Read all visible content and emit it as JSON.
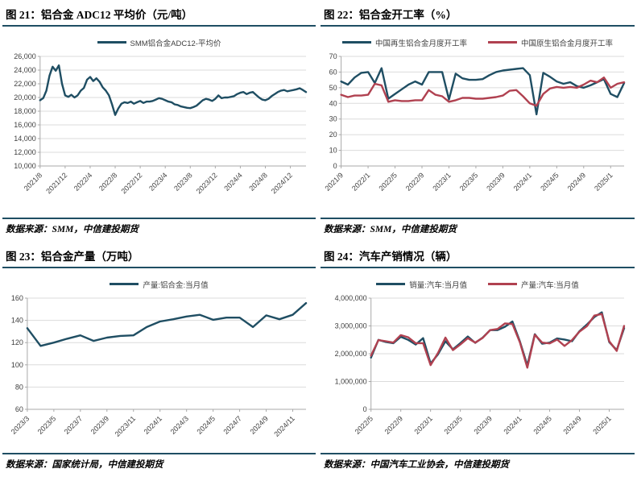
{
  "colors": {
    "navy": "#1F4E63",
    "red": "#B04150",
    "grid": "#DBDBDB",
    "axis": "#A9A9A9",
    "tick_text": "#404040"
  },
  "chart_data": [
    {
      "type": "line",
      "title": "图 21：铝合金 ADC12 平均价（元/吨）",
      "source": "数据来源：SMM，中信建投期货",
      "legend_position": "top",
      "grid": true,
      "ylim": [
        10000,
        26000
      ],
      "ytick_values": [
        10000,
        12000,
        14000,
        16000,
        18000,
        20000,
        22000,
        24000,
        26000
      ],
      "ytick_labels": [
        "10,000",
        "12,000",
        "14,000",
        "16,000",
        "18,000",
        "20,000",
        "22,000",
        "24,000",
        "26,000"
      ],
      "x_tick_labels": [
        "2021/8",
        "2021/12",
        "2022/4",
        "2022/8",
        "2022/12",
        "2023/4",
        "2023/8",
        "2023/12",
        "2024/4",
        "2024/8",
        "2024/12"
      ],
      "x_tick_indices": [
        0,
        8,
        16,
        24,
        32,
        40,
        48,
        56,
        64,
        72,
        80
      ],
      "series": [
        {
          "name": "SMM铝合金ADC12-平均价",
          "color": "#1F4E63",
          "values": [
            19600,
            19900,
            21000,
            23200,
            24500,
            23900,
            24700,
            22000,
            20300,
            20100,
            20400,
            20000,
            20300,
            21000,
            21400,
            22600,
            23000,
            22400,
            22800,
            22300,
            21500,
            21000,
            20300,
            19000,
            17450,
            18400,
            19100,
            19300,
            19200,
            19400,
            19100,
            19300,
            19500,
            19200,
            19400,
            19400,
            19500,
            19700,
            19900,
            19800,
            19600,
            19400,
            19300,
            19000,
            18900,
            18700,
            18600,
            18500,
            18450,
            18600,
            18800,
            19200,
            19600,
            19800,
            19700,
            19500,
            19800,
            20300,
            19900,
            20000,
            20000,
            20100,
            20200,
            20500,
            20700,
            20800,
            20500,
            20700,
            20800,
            20400,
            20000,
            19700,
            19600,
            19800,
            20200,
            20500,
            20800,
            21000,
            21100,
            20900,
            21000,
            21100,
            21200,
            21350,
            21100,
            20800
          ]
        }
      ]
    },
    {
      "type": "line",
      "title": "图 22：铝合金开工率（%）",
      "source": "数据来源：SMM，中信建投期货",
      "legend_position": "top",
      "grid": true,
      "ylim": [
        0,
        70
      ],
      "ytick_values": [
        0,
        10,
        20,
        30,
        40,
        50,
        60,
        70
      ],
      "ytick_labels": [
        "0",
        "10",
        "20",
        "30",
        "40",
        "50",
        "60",
        "70"
      ],
      "x_tick_labels": [
        "2021/9",
        "2022/1",
        "2022/5",
        "2022/9",
        "2023/1",
        "2023/5",
        "2023/9",
        "2024/1",
        "2024/5",
        "2024/9",
        "2025/1"
      ],
      "x_tick_indices": [
        0,
        4,
        8,
        12,
        16,
        20,
        24,
        28,
        32,
        36,
        40
      ],
      "series": [
        {
          "name": "中国再生铝合金月度开工率",
          "color": "#1F4E63",
          "values": [
            54,
            52,
            56.5,
            59.5,
            60,
            53,
            62.5,
            43,
            46,
            49,
            52,
            54,
            52,
            60,
            60,
            60,
            42.5,
            59,
            56,
            55,
            55,
            55.5,
            58,
            60,
            61,
            61.5,
            62,
            62.5,
            58,
            33,
            59.5,
            57,
            54,
            52.5,
            53.5,
            51,
            50,
            51.5,
            53.5,
            55.5,
            46,
            44,
            53
          ]
        },
        {
          "name": "中国原生铝合金月度开工率",
          "color": "#B04150",
          "values": [
            45.5,
            44,
            45,
            45,
            45.5,
            52.5,
            51.5,
            41,
            42,
            41.5,
            41.5,
            42,
            42,
            48.5,
            45.5,
            44.5,
            41,
            42,
            43.5,
            43.5,
            43,
            43,
            43.5,
            44,
            45,
            48,
            48.5,
            44.5,
            40,
            38.5,
            46,
            49.5,
            50.5,
            50,
            50.5,
            50,
            52,
            54.5,
            53.5,
            56.5,
            50,
            52.5,
            53.5
          ]
        }
      ]
    },
    {
      "type": "line",
      "title": "图 23：铝合金产量（万吨）",
      "source": "数据来源：国家统计局，中信建投期货",
      "legend_position": "top",
      "grid": true,
      "ylim": [
        60,
        160
      ],
      "ytick_values": [
        60,
        80,
        100,
        120,
        140,
        160
      ],
      "ytick_labels": [
        "60",
        "80",
        "100",
        "120",
        "140",
        "160"
      ],
      "x_tick_labels": [
        "2023/3",
        "2023/5",
        "2023/7",
        "2023/9",
        "2023/11",
        "2024/1",
        "2024/3",
        "2024/5",
        "2024/7",
        "2024/9",
        "2024/11"
      ],
      "x_tick_indices": [
        0,
        2,
        4,
        6,
        8,
        10,
        12,
        14,
        16,
        18,
        20
      ],
      "series": [
        {
          "name": "产量:铝合金:当月值",
          "color": "#1F4E63",
          "values": [
            133,
            117,
            120,
            123.5,
            126.5,
            121.5,
            124.5,
            126,
            126.5,
            134,
            139,
            141,
            143.5,
            145,
            140.5,
            142.5,
            142.5,
            134,
            144.5,
            141,
            145,
            155.5
          ]
        }
      ]
    },
    {
      "type": "line",
      "title": "图 24：汽车产销情况（辆）",
      "source": "数据来源：中国汽车工业协会，中信建投期货",
      "legend_position": "top",
      "grid": true,
      "ylim": [
        0,
        4000000
      ],
      "ytick_values": [
        0,
        1000000,
        2000000,
        3000000,
        4000000
      ],
      "ytick_labels": [
        "0",
        "1,000,000",
        "2,000,000",
        "3,000,000",
        "4,000,000"
      ],
      "x_tick_labels": [
        "2022/5",
        "2022/9",
        "2023/1",
        "2023/5",
        "2023/9",
        "2024/1",
        "2024/5",
        "2024/9",
        "2025/1"
      ],
      "x_tick_indices": [
        0,
        4,
        8,
        12,
        16,
        20,
        24,
        28,
        32
      ],
      "series": [
        {
          "name": "销量:汽车:当月值",
          "color": "#1F4E63",
          "values": [
            1860000,
            2500000,
            2420000,
            2380000,
            2610000,
            2500000,
            2330000,
            2560000,
            1650000,
            1980000,
            2450000,
            2160000,
            2380000,
            2620000,
            2390000,
            2580000,
            2850000,
            2850000,
            2970000,
            3160000,
            2440000,
            1580000,
            2700000,
            2360000,
            2400000,
            2550000,
            2510000,
            2450000,
            2810000,
            3050000,
            3320000,
            3490000,
            2420000,
            2130000,
            2920000
          ]
        },
        {
          "name": "产量:汽车:当月值",
          "color": "#B04150",
          "values": [
            1930000,
            2490000,
            2450000,
            2400000,
            2670000,
            2590000,
            2380000,
            2380000,
            1590000,
            2030000,
            2580000,
            2130000,
            2330000,
            2560000,
            2400000,
            2570000,
            2850000,
            2890000,
            3090000,
            3070000,
            2410000,
            1500000,
            2680000,
            2400000,
            2370000,
            2510000,
            2280000,
            2490000,
            2790000,
            2990000,
            3370000,
            3430000,
            2450000,
            2100000,
            3000000
          ]
        }
      ]
    }
  ]
}
